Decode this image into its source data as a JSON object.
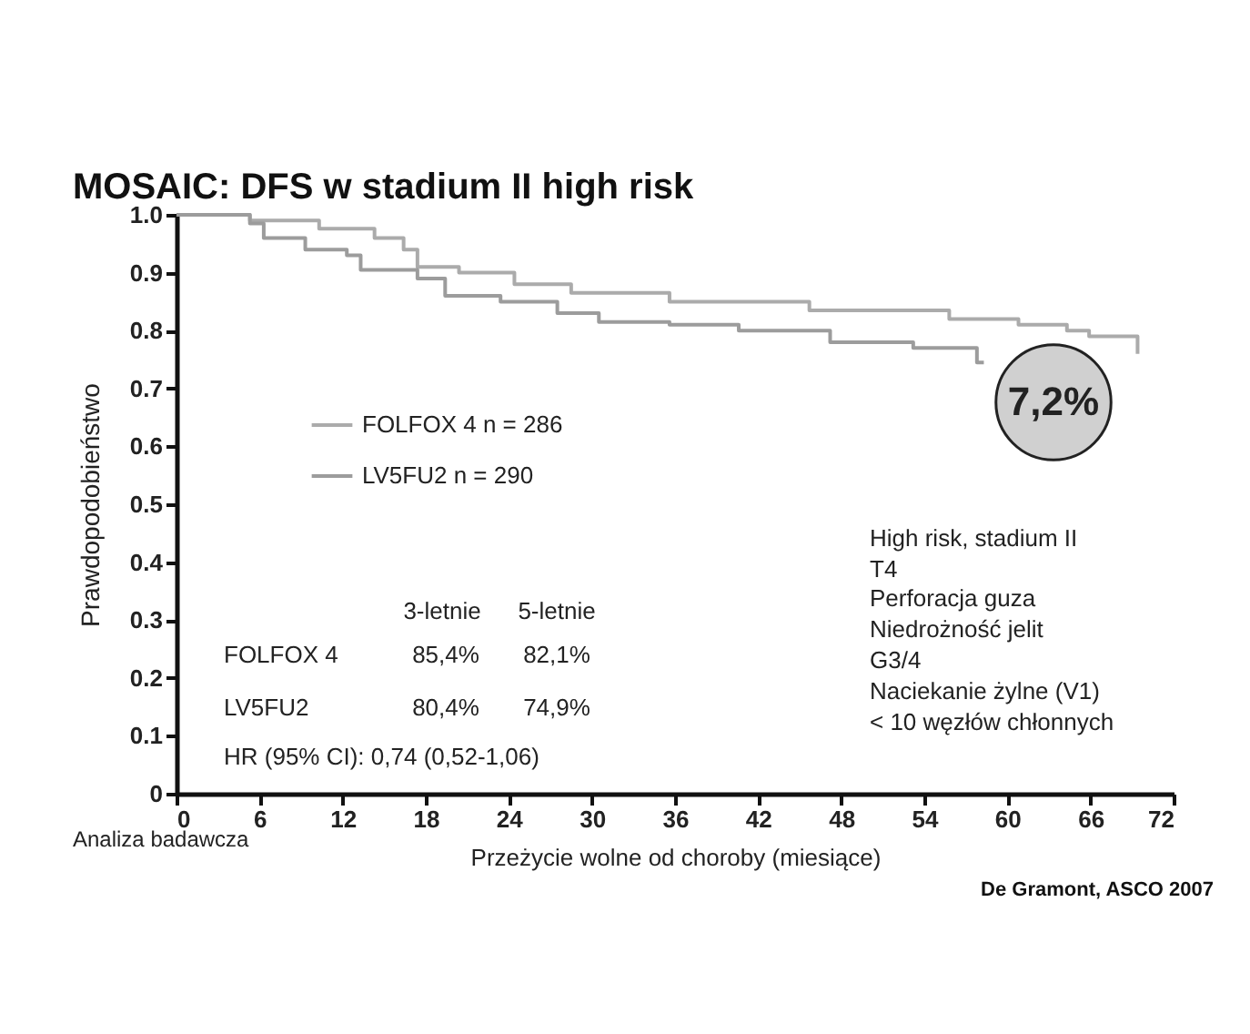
{
  "chart_data": {
    "type": "step",
    "title": "MOSAIC: DFS w stadium II high risk",
    "xlabel": "Przeżycie wolne od choroby (miesiące)",
    "ylabel": "Prawdopodobieństwo",
    "xlim": [
      0,
      72
    ],
    "xticks": [
      0,
      6,
      12,
      18,
      24,
      30,
      36,
      42,
      48,
      54,
      60,
      66,
      72
    ],
    "ylim": [
      0,
      1
    ],
    "yticks": [
      0,
      {
        "value": 0.1,
        "label": "0.1"
      },
      {
        "value": 0.2,
        "label": "0.2"
      },
      {
        "value": 0.3,
        "label": "0.3"
      },
      {
        "value": 0.4,
        "label": "0.4"
      },
      {
        "value": 0.5,
        "label": "0.5"
      },
      {
        "value": 0.6,
        "label": "0.6"
      },
      {
        "value": 0.7,
        "label": "0.7"
      },
      {
        "value": 0.8,
        "label": "0.8"
      },
      {
        "value": 0.9,
        "label": "0.9"
      },
      {
        "value": 1,
        "label": "1.0"
      }
    ],
    "grid": false,
    "legend": "left",
    "series": [
      {
        "name": "FOLFOX 4 n = 286",
        "color": "#ababab",
        "x": [
          0,
          5.3,
          10.3,
          14.3,
          16.4,
          17.4,
          20.4,
          24.4,
          28.5,
          35.6,
          45.7,
          55.8,
          60.8,
          64.3,
          65.9,
          69.4,
          69.4
        ],
        "values": [
          1.0,
          0.99,
          0.976,
          0.96,
          0.94,
          0.91,
          0.9,
          0.88,
          0.865,
          0.85,
          0.835,
          0.82,
          0.81,
          0.8,
          0.79,
          0.79,
          0.76
        ]
      },
      {
        "name": "LV5FU2 n = 290",
        "color": "#9c9c9c",
        "x": [
          0,
          5.3,
          6.3,
          9.3,
          12.3,
          13.3,
          17.4,
          19.4,
          23.4,
          27.5,
          30.5,
          35.6,
          40.6,
          47.2,
          53.2,
          57.8,
          58.3
        ],
        "values": [
          1.0,
          0.985,
          0.96,
          0.94,
          0.93,
          0.905,
          0.89,
          0.86,
          0.85,
          0.83,
          0.815,
          0.81,
          0.8,
          0.78,
          0.77,
          0.745,
          0.745
        ]
      }
    ],
    "annotations": [
      "3-letnie",
      "5-letnie",
      "FOLFOX 4",
      "85,4%",
      "82,1%",
      "LV5FU2",
      "80,4%",
      "74,9%",
      "HR (95% CI): 0,74 (0,52-1,06)",
      "High risk, stadium II",
      "T4",
      "Perforacja guza",
      "Niedrożność jelit",
      "G3/4",
      "Naciekanie żylne (V1)",
      "< 10 węzłów chłonnych",
      "Analiza badawcza",
      "De Gramont, ASCO 2007",
      "7,2%"
    ]
  }
}
